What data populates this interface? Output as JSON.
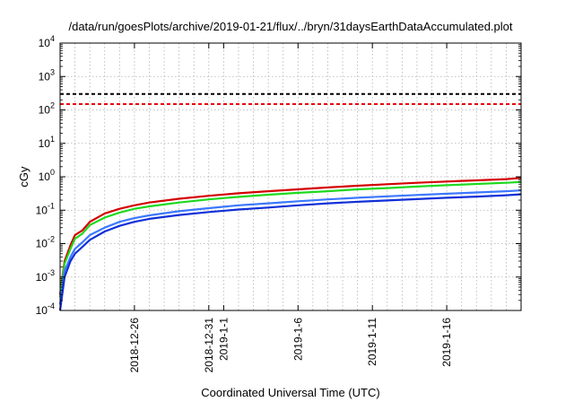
{
  "chart_data": {
    "type": "line",
    "title": "/data/run/goesPlots/archive/2019-01-21/flux/../bryn/31daysEarthDataAccumulated.plot",
    "xlabel": "Coordinated Universal Time (UTC)",
    "ylabel": "cGy",
    "y_scale": "log",
    "ylim": [
      0.0001,
      10000
    ],
    "xlim_days_from_start": [
      0,
      31
    ],
    "grid": true,
    "y_ticks": [
      {
        "base": "10",
        "exp": "-4",
        "value": 0.0001
      },
      {
        "base": "10",
        "exp": "-3",
        "value": 0.001
      },
      {
        "base": "10",
        "exp": "-2",
        "value": 0.01
      },
      {
        "base": "10",
        "exp": "-1",
        "value": 0.1
      },
      {
        "base": "10",
        "exp": "0",
        "value": 1
      },
      {
        "base": "10",
        "exp": "1",
        "value": 10
      },
      {
        "base": "10",
        "exp": "2",
        "value": 100
      },
      {
        "base": "10",
        "exp": "3",
        "value": 1000
      },
      {
        "base": "10",
        "exp": "4",
        "value": 10000
      }
    ],
    "x_ticks": [
      {
        "label": "2018-12-26",
        "day": 5
      },
      {
        "label": "2018-12-31",
        "day": 10
      },
      {
        "label": "2019-1-1",
        "day": 11
      },
      {
        "label": "2019-1-6",
        "day": 16
      },
      {
        "label": "2019-1-11",
        "day": 21
      },
      {
        "label": "2019-1-16",
        "day": 26
      }
    ],
    "thresholds": [
      {
        "value": 300,
        "color": "#000000"
      },
      {
        "value": 150,
        "color": "#e8000b"
      }
    ],
    "series": [
      {
        "color": "#d40000",
        "x": [
          0,
          0.3,
          0.7,
          1,
          1.5,
          2,
          3,
          4,
          5,
          6,
          8,
          10,
          12,
          14,
          16,
          18,
          20,
          22,
          24,
          26,
          28,
          30,
          31
        ],
        "y": [
          0.0003,
          0.003,
          0.009,
          0.018,
          0.025,
          0.045,
          0.08,
          0.11,
          0.14,
          0.17,
          0.22,
          0.27,
          0.32,
          0.37,
          0.42,
          0.48,
          0.54,
          0.6,
          0.66,
          0.72,
          0.78,
          0.85,
          0.92
        ]
      },
      {
        "color": "#1ed91e",
        "x": [
          0,
          0.3,
          0.7,
          1,
          1.5,
          2,
          3,
          4,
          5,
          6,
          8,
          10,
          12,
          14,
          16,
          18,
          20,
          22,
          24,
          26,
          28,
          30,
          31
        ],
        "y": [
          0.00025,
          0.0025,
          0.007,
          0.014,
          0.02,
          0.036,
          0.06,
          0.085,
          0.11,
          0.13,
          0.17,
          0.21,
          0.25,
          0.29,
          0.33,
          0.37,
          0.42,
          0.46,
          0.51,
          0.56,
          0.61,
          0.66,
          0.7
        ]
      },
      {
        "color": "#3c78ff",
        "x": [
          0,
          0.3,
          0.7,
          1,
          1.5,
          2,
          3,
          4,
          5,
          6,
          8,
          10,
          12,
          14,
          16,
          18,
          20,
          22,
          24,
          26,
          28,
          30,
          31
        ],
        "y": [
          0.00015,
          0.0015,
          0.004,
          0.007,
          0.011,
          0.018,
          0.03,
          0.045,
          0.058,
          0.07,
          0.093,
          0.115,
          0.14,
          0.16,
          0.185,
          0.21,
          0.235,
          0.26,
          0.285,
          0.31,
          0.34,
          0.37,
          0.39
        ]
      },
      {
        "color": "#1030d8",
        "x": [
          0,
          0.3,
          0.7,
          1,
          1.5,
          2,
          3,
          4,
          5,
          6,
          8,
          10,
          12,
          14,
          16,
          18,
          20,
          22,
          24,
          26,
          28,
          30,
          31
        ],
        "y": [
          0.0001,
          0.001,
          0.003,
          0.005,
          0.008,
          0.013,
          0.023,
          0.034,
          0.045,
          0.055,
          0.072,
          0.088,
          0.105,
          0.12,
          0.14,
          0.16,
          0.178,
          0.196,
          0.215,
          0.235,
          0.255,
          0.28,
          0.3
        ]
      }
    ]
  }
}
